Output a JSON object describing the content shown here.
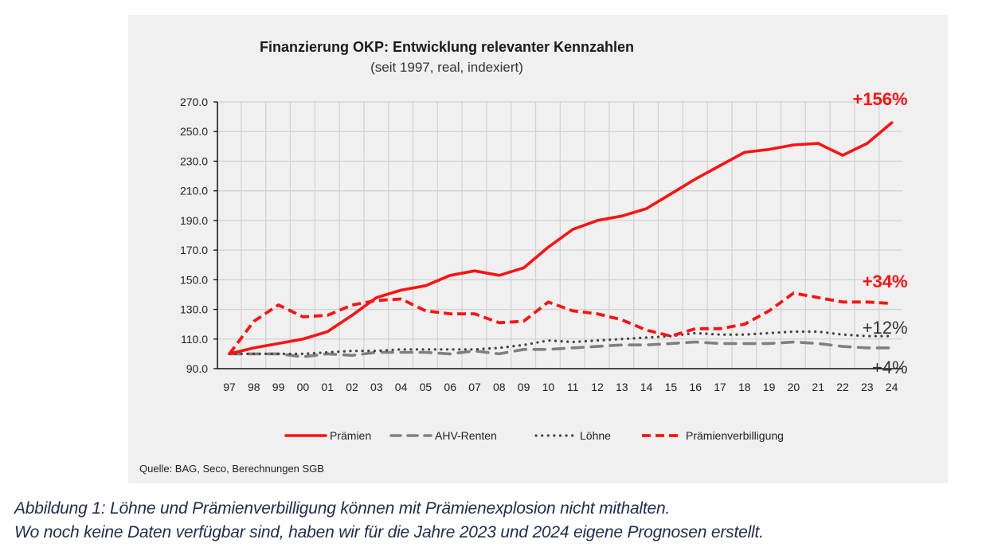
{
  "chart_data": {
    "type": "line",
    "title": "Finanzierung OKP: Entwicklung relevanter Kennzahlen",
    "subtitle": "(seit 1997, real, indexiert)",
    "xlabel": "",
    "ylabel": "",
    "x": [
      "97",
      "98",
      "99",
      "00",
      "01",
      "02",
      "03",
      "04",
      "05",
      "06",
      "07",
      "08",
      "09",
      "10",
      "11",
      "12",
      "13",
      "14",
      "15",
      "16",
      "17",
      "18",
      "19",
      "20",
      "21",
      "22",
      "23",
      "24"
    ],
    "ylim": [
      90,
      270
    ],
    "yticks": [
      90,
      110,
      130,
      150,
      170,
      190,
      210,
      230,
      250,
      270
    ],
    "ytick_labels": [
      "90.0",
      "110.0",
      "130.0",
      "150.0",
      "170.0",
      "190.0",
      "210.0",
      "230.0",
      "250.0",
      "270.0"
    ],
    "grid": true,
    "legend_position": "bottom",
    "series": [
      {
        "name": "Prämien",
        "style": "solid",
        "color": "#ff1111",
        "values": [
          100,
          104,
          107,
          110,
          115,
          126,
          138,
          143,
          146,
          153,
          156,
          153,
          158,
          172,
          184,
          190,
          193,
          198,
          208,
          218,
          227,
          236,
          238,
          241,
          242,
          234,
          242,
          256
        ]
      },
      {
        "name": "AHV-Renten",
        "style": "longdash",
        "color": "#808080",
        "values": [
          100,
          100,
          100,
          98,
          100,
          99,
          101,
          101,
          101,
          100,
          102,
          100,
          103,
          103,
          104,
          105,
          106,
          106,
          107,
          108,
          107,
          107,
          107,
          108,
          107,
          105,
          104,
          104
        ]
      },
      {
        "name": "Löhne",
        "style": "dotted",
        "color": "#444444",
        "values": [
          100,
          100,
          100,
          100,
          101,
          102,
          102,
          103,
          103,
          103,
          103,
          104,
          106,
          109,
          108,
          109,
          110,
          111,
          112,
          114,
          113,
          113,
          114,
          115,
          115,
          113,
          112,
          112
        ]
      },
      {
        "name": "Prämienverbilligung",
        "style": "dashed",
        "color": "#ff1111",
        "values": [
          100,
          122,
          133,
          125,
          126,
          133,
          136,
          137,
          129,
          127,
          127,
          121,
          122,
          135,
          129,
          127,
          123,
          116,
          112,
          117,
          117,
          120,
          129,
          141,
          138,
          135,
          135,
          134
        ]
      }
    ],
    "annotations": [
      {
        "text": "+156%",
        "series": "Prämien",
        "color": "#ff1111"
      },
      {
        "text": "+34%",
        "series": "Prämienverbilligung",
        "color": "#ff1111"
      },
      {
        "text": "+12%",
        "series": "Löhne",
        "color": "#333333"
      },
      {
        "text": "+4%",
        "series": "AHV-Renten",
        "color": "#333333"
      }
    ],
    "source": "Quelle: BAG, Seco, Berechnungen SGB"
  },
  "caption": {
    "line1": "Abbildung 1: Löhne und Prämienverbilligung können mit Prämienexplosion nicht mithalten.",
    "line2": "Wo noch keine Daten verfügbar sind, haben wir für die Jahre 2023 und 2024 eigene Prognosen erstellt."
  }
}
